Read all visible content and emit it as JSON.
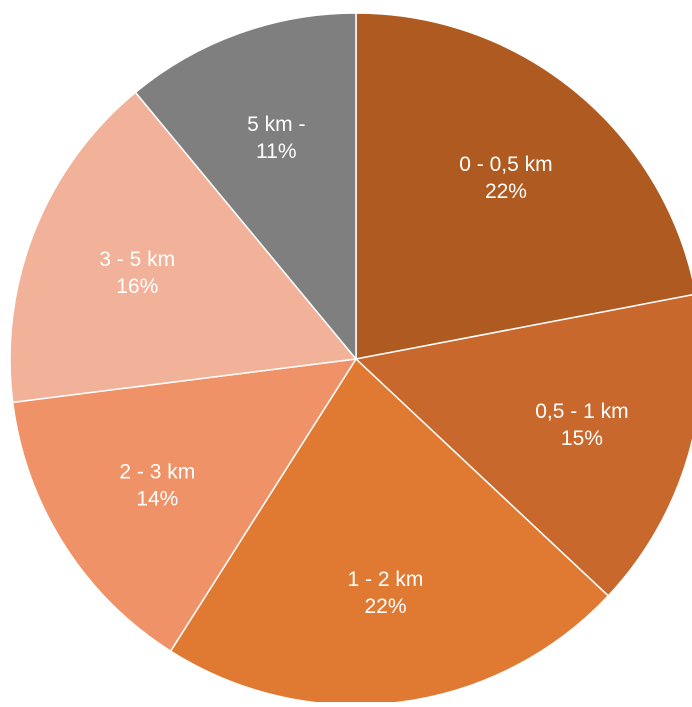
{
  "chart_data": {
    "type": "pie",
    "title": "",
    "start_angle_deg": 0,
    "direction": "clockwise",
    "slice_separator_color": "#ffffff",
    "label_color": "#ffffff",
    "slices": [
      {
        "category": "0 - 0,5 km",
        "value": 22,
        "label_lines": [
          "0 - 0,5 km",
          "22%"
        ],
        "color": "#AE5A21"
      },
      {
        "category": "0,5 - 1 km",
        "value": 15,
        "label_lines": [
          "0,5 - 1 km",
          "15%"
        ],
        "color": "#C8682C"
      },
      {
        "category": "1 - 2 km",
        "value": 22,
        "label_lines": [
          "1 - 2 km",
          "22%"
        ],
        "color": "#E07A33"
      },
      {
        "category": "2 - 3 km",
        "value": 14,
        "label_lines": [
          "2 - 3 km",
          "14%"
        ],
        "color": "#EF9268"
      },
      {
        "category": "3 - 5 km",
        "value": 16,
        "label_lines": [
          "3 - 5 km",
          "16%"
        ],
        "color": "#F2B199"
      },
      {
        "category": "5 km -",
        "value": 11,
        "label_lines": [
          "5 km -",
          "11%"
        ],
        "color": "#7F7F7F"
      }
    ]
  }
}
